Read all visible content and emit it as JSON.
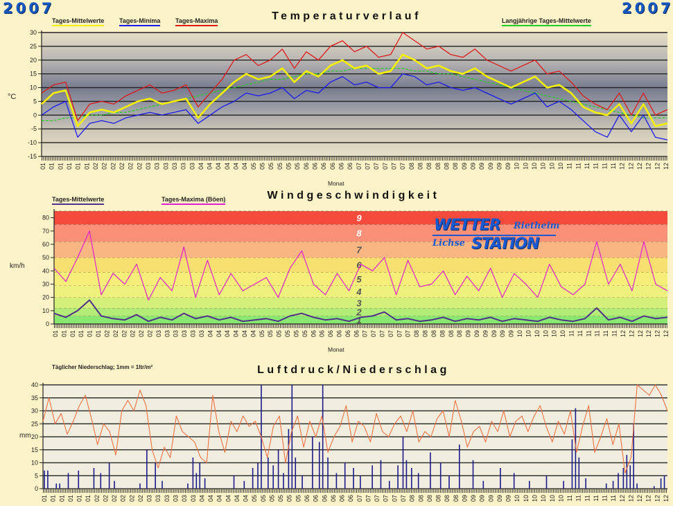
{
  "header": {
    "year_left": "2007",
    "year_right": "2007"
  },
  "colors": {
    "mean": "#f5f000",
    "min": "#1a1aee",
    "max": "#e01818",
    "longterm": "#22cc22",
    "wind_mean": "#50308a",
    "wind_gust": "#e020d0",
    "pressure": "#f07040",
    "precip": "#1a1a8a"
  },
  "chart_data": [
    {
      "type": "line",
      "title": "Temperaturverlauf",
      "xlabel": "Monat",
      "ylabel": "°C",
      "ylim": [
        -15,
        30
      ],
      "yticks": [
        30,
        25,
        20,
        15,
        10,
        5,
        0,
        -5,
        -10,
        -15
      ],
      "x_tick_months": [
        "01",
        "02",
        "03",
        "04",
        "05",
        "06",
        "07",
        "08",
        "09",
        "10",
        "11",
        "12"
      ],
      "x_resolution": "weekly (approx.)",
      "grid": true,
      "legend": [
        "Tages-Mittelwerte",
        "Tages-Minima",
        "Tages-Maxima",
        "Langjährige Tages-Mittelwerte"
      ],
      "series": [
        {
          "name": "Tages-Mittelwerte",
          "values": [
            4,
            8,
            9,
            -4,
            1,
            2,
            1,
            3,
            5,
            6,
            4,
            5,
            6,
            -1,
            4,
            8,
            12,
            15,
            13,
            14,
            17,
            12,
            16,
            14,
            18,
            20,
            17,
            18,
            15,
            16,
            22,
            20,
            17,
            18,
            16,
            15,
            17,
            14,
            12,
            10,
            12,
            14,
            10,
            11,
            8,
            3,
            1,
            0,
            4,
            -3,
            4,
            -4,
            -3
          ]
        },
        {
          "name": "Tages-Minima",
          "values": [
            0,
            3,
            5,
            -8,
            -3,
            -2,
            -3,
            -1,
            0,
            1,
            0,
            1,
            2,
            -3,
            0,
            3,
            5,
            8,
            7,
            8,
            10,
            6,
            9,
            8,
            12,
            14,
            11,
            12,
            10,
            10,
            15,
            14,
            11,
            12,
            10,
            9,
            10,
            8,
            6,
            4,
            6,
            8,
            3,
            5,
            2,
            -2,
            -6,
            -8,
            0,
            -6,
            0,
            -8,
            -9
          ]
        },
        {
          "name": "Tages-Maxima",
          "values": [
            8,
            11,
            12,
            -2,
            4,
            5,
            4,
            7,
            9,
            11,
            8,
            9,
            11,
            3,
            8,
            13,
            20,
            22,
            18,
            20,
            24,
            17,
            23,
            20,
            25,
            27,
            23,
            25,
            21,
            22,
            30,
            27,
            24,
            25,
            22,
            21,
            24,
            20,
            18,
            16,
            18,
            20,
            15,
            16,
            12,
            7,
            4,
            2,
            8,
            0,
            8,
            0,
            2
          ]
        },
        {
          "name": "Langjährige Tages-Mittelwerte",
          "values": [
            -2,
            -2,
            -1,
            -1,
            0,
            0,
            1,
            1,
            2,
            3,
            4,
            5,
            6,
            7,
            8,
            9,
            10,
            11,
            12,
            13,
            13,
            14,
            15,
            15,
            16,
            16,
            17,
            17,
            17,
            17,
            17,
            16,
            16,
            15,
            15,
            14,
            13,
            12,
            11,
            10,
            9,
            8,
            7,
            6,
            5,
            4,
            3,
            2,
            1,
            0,
            -1,
            -1,
            -1
          ]
        }
      ]
    },
    {
      "type": "line",
      "title": "Windgeschwindigkeit",
      "xlabel": "Monat",
      "ylabel": "km/h",
      "ylim": [
        0,
        85
      ],
      "yticks": [
        80,
        70,
        60,
        50,
        40,
        30,
        20,
        10,
        0
      ],
      "x_tick_months": [
        "01",
        "02",
        "03",
        "04",
        "05",
        "06",
        "07",
        "08",
        "09",
        "10",
        "11",
        "12"
      ],
      "legend": [
        "Tages-Mittelwerte",
        "Tages-Maxima (Böen)"
      ],
      "beaufort_bands": {
        "bounds": [
          0,
          6,
          12,
          20,
          29,
          39,
          50,
          62,
          75,
          85
        ],
        "labels": [
          "1",
          "2",
          "3",
          "4",
          "5",
          "6",
          "7",
          "8",
          "9"
        ],
        "colors": [
          "#88e870",
          "#b4ec78",
          "#d4f07a",
          "#eef27c",
          "#f6ee78",
          "#f8e070",
          "#f9b582",
          "#f99077",
          "#f44b3c"
        ]
      },
      "series": [
        {
          "name": "Tages-Mittelwerte",
          "values": [
            8,
            5,
            10,
            18,
            6,
            4,
            3,
            7,
            2,
            5,
            3,
            8,
            4,
            6,
            3,
            5,
            2,
            3,
            4,
            2,
            6,
            8,
            5,
            3,
            4,
            2,
            5,
            6,
            9,
            3,
            4,
            2,
            3,
            5,
            2,
            4,
            3,
            5,
            2,
            4,
            3,
            2,
            5,
            3,
            2,
            4,
            12,
            3,
            5,
            2,
            6,
            4,
            5
          ]
        },
        {
          "name": "Tages-Maxima (Böen)",
          "values": [
            42,
            32,
            50,
            70,
            22,
            38,
            30,
            45,
            18,
            35,
            25,
            58,
            20,
            48,
            22,
            38,
            25,
            30,
            35,
            20,
            42,
            55,
            30,
            22,
            38,
            25,
            45,
            40,
            50,
            22,
            48,
            28,
            30,
            40,
            22,
            36,
            25,
            42,
            20,
            38,
            30,
            20,
            45,
            28,
            22,
            30,
            62,
            30,
            45,
            25,
            62,
            30,
            25
          ]
        }
      ],
      "logo": {
        "line1": "WETTER",
        "line1b": "Rietheim",
        "line2a": "Lichse",
        "line2b": "STATION"
      }
    },
    {
      "type": "bar+line",
      "title": "Luftdruck/Niederschlag",
      "note": "Täglicher Niederschlag; 1mm = 1ltr/m²",
      "ylabel": "mm",
      "ylim": [
        0,
        40
      ],
      "yticks": [
        40,
        35,
        30,
        25,
        20,
        15,
        10,
        5,
        0
      ],
      "x_tick_months": [
        "01",
        "02",
        "03",
        "04",
        "05",
        "06",
        "07",
        "08",
        "09",
        "10",
        "11",
        "12"
      ],
      "series": [
        {
          "name": "Luftdruck",
          "values": [
            26,
            35,
            25,
            29,
            21,
            26,
            32,
            36,
            27,
            17,
            25,
            22,
            13,
            30,
            34,
            30,
            38,
            32,
            15,
            8,
            16,
            12,
            28,
            22,
            20,
            18,
            12,
            10,
            36,
            22,
            14,
            26,
            22,
            28,
            24,
            26,
            20,
            12,
            24,
            28,
            10,
            22,
            28,
            16,
            26,
            20,
            28,
            14,
            20,
            24,
            32,
            18,
            26,
            24,
            18,
            29,
            22,
            20,
            25,
            28,
            22,
            30,
            18,
            22,
            20,
            27,
            30,
            20,
            34,
            26,
            16,
            22,
            24,
            18,
            26,
            22,
            30,
            20,
            26,
            28,
            22,
            28,
            32,
            24,
            18,
            26,
            21,
            30,
            14,
            24,
            32,
            14,
            20,
            27,
            17,
            25,
            6,
            12,
            40,
            38,
            36,
            40,
            36,
            30
          ]
        },
        {
          "name": "Niederschlag",
          "points": [
            [
              1,
              7
            ],
            [
              3,
              7
            ],
            [
              8,
              2
            ],
            [
              10,
              2
            ],
            [
              15,
              6
            ],
            [
              21,
              7
            ],
            [
              30,
              8
            ],
            [
              34,
              6
            ],
            [
              39,
              10
            ],
            [
              42,
              3
            ],
            [
              57,
              2
            ],
            [
              61,
              15
            ],
            [
              66,
              10
            ],
            [
              70,
              3
            ],
            [
              85,
              2
            ],
            [
              88,
              12
            ],
            [
              90,
              6
            ],
            [
              92,
              10
            ],
            [
              95,
              4
            ],
            [
              112,
              5
            ],
            [
              118,
              3
            ],
            [
              123,
              8
            ],
            [
              126,
              10
            ],
            [
              128,
              40
            ],
            [
              132,
              12
            ],
            [
              135,
              9
            ],
            [
              138,
              15
            ],
            [
              141,
              6
            ],
            [
              144,
              23
            ],
            [
              146,
              40
            ],
            [
              148,
              12
            ],
            [
              152,
              5
            ],
            [
              158,
              20
            ],
            [
              162,
              18
            ],
            [
              164,
              40
            ],
            [
              167,
              12
            ],
            [
              172,
              6
            ],
            [
              177,
              10
            ],
            [
              182,
              8
            ],
            [
              186,
              5
            ],
            [
              193,
              9
            ],
            [
              198,
              11
            ],
            [
              203,
              3
            ],
            [
              208,
              9
            ],
            [
              211,
              20
            ],
            [
              213,
              11
            ],
            [
              216,
              8
            ],
            [
              220,
              6
            ],
            [
              227,
              14
            ],
            [
              233,
              10
            ],
            [
              238,
              5
            ],
            [
              244,
              17
            ],
            [
              252,
              11
            ],
            [
              258,
              3
            ],
            [
              268,
              8
            ],
            [
              276,
              6
            ],
            [
              285,
              3
            ],
            [
              295,
              5
            ],
            [
              305,
              3
            ],
            [
              310,
              19
            ],
            [
              312,
              31
            ],
            [
              314,
              12
            ],
            [
              318,
              4
            ],
            [
              330,
              2
            ],
            [
              334,
              3
            ],
            [
              337,
              6
            ],
            [
              340,
              8
            ],
            [
              342,
              13
            ],
            [
              344,
              9
            ],
            [
              346,
              25
            ],
            [
              348,
              2
            ],
            [
              358,
              1
            ],
            [
              362,
              4
            ],
            [
              364,
              5
            ]
          ]
        }
      ]
    }
  ]
}
